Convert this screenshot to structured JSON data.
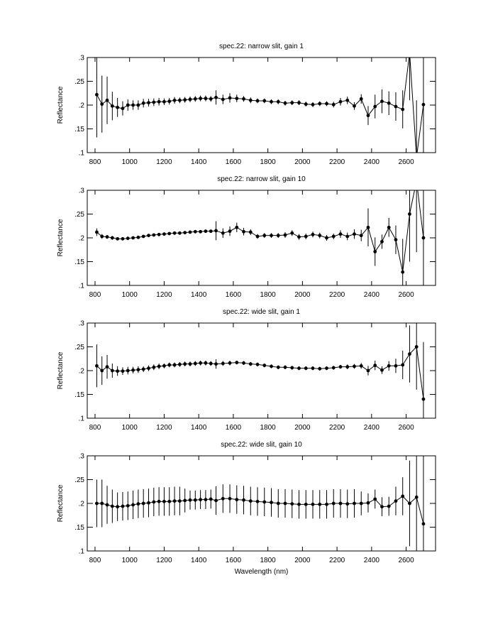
{
  "chart_data": [
    {
      "type": "line",
      "title": "spec.22: narrow slit, gain 1",
      "ylabel": "Reflectance",
      "x": [
        810,
        840,
        870,
        900,
        930,
        960,
        990,
        1020,
        1050,
        1080,
        1110,
        1140,
        1170,
        1200,
        1230,
        1260,
        1290,
        1320,
        1350,
        1380,
        1410,
        1440,
        1470,
        1500,
        1540,
        1580,
        1620,
        1660,
        1700,
        1740,
        1780,
        1820,
        1860,
        1900,
        1940,
        1980,
        2020,
        2060,
        2100,
        2140,
        2180,
        2220,
        2260,
        2300,
        2340,
        2380,
        2420,
        2460,
        2500,
        2540,
        2580,
        2620,
        2660,
        2700
      ],
      "values": [
        0.222,
        0.202,
        0.21,
        0.198,
        0.195,
        0.193,
        0.2,
        0.2,
        0.2,
        0.204,
        0.205,
        0.206,
        0.207,
        0.207,
        0.208,
        0.21,
        0.21,
        0.211,
        0.212,
        0.213,
        0.214,
        0.214,
        0.213,
        0.216,
        0.212,
        0.215,
        0.214,
        0.213,
        0.21,
        0.209,
        0.209,
        0.207,
        0.207,
        0.204,
        0.205,
        0.205,
        0.202,
        0.201,
        0.203,
        0.203,
        0.201,
        0.207,
        0.21,
        0.198,
        0.213,
        0.178,
        0.197,
        0.208,
        0.204,
        0.197,
        0.191,
        0.31,
        0.09,
        0.201
      ],
      "errors": [
        0.09,
        0.06,
        0.05,
        0.03,
        0.02,
        0.015,
        0.012,
        0.01,
        0.01,
        0.009,
        0.008,
        0.008,
        0.008,
        0.007,
        0.007,
        0.007,
        0.006,
        0.006,
        0.006,
        0.006,
        0.006,
        0.006,
        0.006,
        0.015,
        0.01,
        0.01,
        0.008,
        0.006,
        0.006,
        0.005,
        0.005,
        0.005,
        0.005,
        0.005,
        0.005,
        0.005,
        0.005,
        0.005,
        0.005,
        0.005,
        0.006,
        0.008,
        0.008,
        0.008,
        0.01,
        0.02,
        0.025,
        0.025,
        0.025,
        0.03,
        0.04,
        0.1,
        0.12,
        0.15
      ],
      "xlim": [
        755,
        2770
      ],
      "ylim": [
        0.1,
        0.3
      ],
      "xticks": [
        800,
        1000,
        1200,
        1400,
        1600,
        1800,
        2000,
        2200,
        2400,
        2600
      ],
      "yticks": [
        {
          "value": 0.1,
          "label": ".1"
        },
        {
          "value": 0.15,
          "label": ".15"
        },
        {
          "value": 0.2,
          "label": ".2"
        },
        {
          "value": 0.25,
          "label": ".25"
        },
        {
          "value": 0.3,
          "label": ".3"
        }
      ]
    },
    {
      "type": "line",
      "title": "spec.22: narrow slit, gain 10",
      "ylabel": "Reflectance",
      "x": [
        810,
        840,
        870,
        900,
        930,
        960,
        990,
        1020,
        1050,
        1080,
        1110,
        1140,
        1170,
        1200,
        1230,
        1260,
        1290,
        1320,
        1350,
        1380,
        1410,
        1440,
        1470,
        1500,
        1540,
        1580,
        1620,
        1660,
        1700,
        1740,
        1780,
        1820,
        1860,
        1900,
        1940,
        1980,
        2020,
        2060,
        2100,
        2140,
        2180,
        2220,
        2260,
        2300,
        2340,
        2380,
        2420,
        2460,
        2500,
        2540,
        2580,
        2620,
        2660,
        2700
      ],
      "values": [
        0.212,
        0.203,
        0.202,
        0.2,
        0.198,
        0.198,
        0.199,
        0.2,
        0.201,
        0.203,
        0.205,
        0.206,
        0.207,
        0.208,
        0.209,
        0.21,
        0.21,
        0.211,
        0.212,
        0.213,
        0.213,
        0.214,
        0.214,
        0.215,
        0.21,
        0.214,
        0.222,
        0.213,
        0.212,
        0.203,
        0.205,
        0.205,
        0.205,
        0.206,
        0.21,
        0.202,
        0.203,
        0.207,
        0.205,
        0.2,
        0.203,
        0.208,
        0.203,
        0.208,
        0.205,
        0.222,
        0.171,
        0.192,
        0.222,
        0.196,
        0.128,
        0.25,
        0.32,
        0.2
      ],
      "errors": [
        0.008,
        0.005,
        0.004,
        0.004,
        0.003,
        0.003,
        0.003,
        0.003,
        0.003,
        0.003,
        0.003,
        0.003,
        0.003,
        0.003,
        0.003,
        0.003,
        0.003,
        0.003,
        0.003,
        0.003,
        0.003,
        0.003,
        0.003,
        0.02,
        0.01,
        0.01,
        0.01,
        0.008,
        0.006,
        0.005,
        0.005,
        0.005,
        0.005,
        0.006,
        0.006,
        0.006,
        0.006,
        0.006,
        0.006,
        0.006,
        0.006,
        0.008,
        0.008,
        0.01,
        0.012,
        0.04,
        0.03,
        0.015,
        0.02,
        0.03,
        0.07,
        0.1,
        0.15,
        0.15
      ],
      "xlim": [
        755,
        2770
      ],
      "ylim": [
        0.1,
        0.3
      ],
      "xticks": [
        800,
        1000,
        1200,
        1400,
        1600,
        1800,
        2000,
        2200,
        2400,
        2600
      ],
      "yticks": [
        {
          "value": 0.1,
          "label": ".1"
        },
        {
          "value": 0.15,
          "label": ".15"
        },
        {
          "value": 0.2,
          "label": ".2"
        },
        {
          "value": 0.25,
          "label": ".25"
        },
        {
          "value": 0.3,
          "label": ".3"
        }
      ]
    },
    {
      "type": "line",
      "title": "spec.22: wide slit, gain 1",
      "ylabel": "Reflectance",
      "x": [
        810,
        840,
        870,
        900,
        930,
        960,
        990,
        1020,
        1050,
        1080,
        1110,
        1140,
        1170,
        1200,
        1230,
        1260,
        1290,
        1320,
        1350,
        1380,
        1410,
        1440,
        1470,
        1500,
        1540,
        1580,
        1620,
        1660,
        1700,
        1740,
        1780,
        1820,
        1860,
        1900,
        1940,
        1980,
        2020,
        2060,
        2100,
        2140,
        2180,
        2220,
        2260,
        2300,
        2340,
        2380,
        2420,
        2460,
        2500,
        2540,
        2580,
        2620,
        2660,
        2700
      ],
      "values": [
        0.21,
        0.2,
        0.208,
        0.2,
        0.199,
        0.199,
        0.2,
        0.201,
        0.202,
        0.203,
        0.205,
        0.207,
        0.209,
        0.21,
        0.212,
        0.212,
        0.213,
        0.214,
        0.214,
        0.215,
        0.216,
        0.216,
        0.215,
        0.214,
        0.215,
        0.216,
        0.217,
        0.216,
        0.214,
        0.213,
        0.211,
        0.209,
        0.207,
        0.207,
        0.206,
        0.205,
        0.205,
        0.205,
        0.204,
        0.205,
        0.206,
        0.208,
        0.208,
        0.209,
        0.21,
        0.2,
        0.211,
        0.201,
        0.21,
        0.21,
        0.212,
        0.235,
        0.25,
        0.14
      ],
      "errors": [
        0.045,
        0.03,
        0.025,
        0.015,
        0.01,
        0.008,
        0.008,
        0.007,
        0.007,
        0.006,
        0.006,
        0.006,
        0.006,
        0.005,
        0.005,
        0.005,
        0.005,
        0.005,
        0.005,
        0.005,
        0.005,
        0.005,
        0.005,
        0.01,
        0.005,
        0.005,
        0.004,
        0.004,
        0.004,
        0.004,
        0.004,
        0.004,
        0.004,
        0.004,
        0.004,
        0.004,
        0.004,
        0.004,
        0.004,
        0.004,
        0.004,
        0.004,
        0.005,
        0.005,
        0.006,
        0.01,
        0.01,
        0.008,
        0.01,
        0.015,
        0.03,
        0.06,
        0.09,
        0.12
      ],
      "xlim": [
        755,
        2770
      ],
      "ylim": [
        0.1,
        0.3
      ],
      "xticks": [
        800,
        1000,
        1200,
        1400,
        1600,
        1800,
        2000,
        2200,
        2400,
        2600
      ],
      "yticks": [
        {
          "value": 0.1,
          "label": ".1"
        },
        {
          "value": 0.15,
          "label": ".15"
        },
        {
          "value": 0.2,
          "label": ".2"
        },
        {
          "value": 0.25,
          "label": ".25"
        },
        {
          "value": 0.3,
          "label": ".3"
        }
      ]
    },
    {
      "type": "line",
      "title": "spec.22: wide slit, gain 10",
      "ylabel": "Reflectance",
      "xlabel": "Wavelength (nm)",
      "x": [
        810,
        840,
        870,
        900,
        930,
        960,
        990,
        1020,
        1050,
        1080,
        1110,
        1140,
        1170,
        1200,
        1230,
        1260,
        1290,
        1320,
        1350,
        1380,
        1410,
        1440,
        1470,
        1500,
        1540,
        1580,
        1620,
        1660,
        1700,
        1740,
        1780,
        1820,
        1860,
        1900,
        1940,
        1980,
        2020,
        2060,
        2100,
        2140,
        2180,
        2220,
        2260,
        2300,
        2340,
        2380,
        2420,
        2460,
        2500,
        2540,
        2580,
        2620,
        2660,
        2700
      ],
      "values": [
        0.2,
        0.2,
        0.197,
        0.194,
        0.193,
        0.194,
        0.195,
        0.197,
        0.199,
        0.2,
        0.201,
        0.203,
        0.204,
        0.204,
        0.204,
        0.205,
        0.205,
        0.206,
        0.207,
        0.207,
        0.208,
        0.208,
        0.209,
        0.206,
        0.21,
        0.21,
        0.208,
        0.207,
        0.205,
        0.204,
        0.203,
        0.202,
        0.2,
        0.2,
        0.199,
        0.198,
        0.198,
        0.198,
        0.198,
        0.198,
        0.2,
        0.2,
        0.199,
        0.2,
        0.2,
        0.201,
        0.209,
        0.193,
        0.194,
        0.205,
        0.215,
        0.2,
        0.213,
        0.157
      ],
      "errors": [
        0.05,
        0.05,
        0.04,
        0.035,
        0.03,
        0.03,
        0.03,
        0.03,
        0.03,
        0.03,
        0.03,
        0.03,
        0.03,
        0.03,
        0.03,
        0.03,
        0.03,
        0.025,
        0.02,
        0.02,
        0.02,
        0.02,
        0.02,
        0.03,
        0.03,
        0.03,
        0.03,
        0.03,
        0.03,
        0.03,
        0.03,
        0.03,
        0.03,
        0.03,
        0.03,
        0.03,
        0.03,
        0.03,
        0.03,
        0.03,
        0.03,
        0.03,
        0.03,
        0.03,
        0.025,
        0.02,
        0.02,
        0.02,
        0.02,
        0.03,
        0.04,
        0.09,
        0.12,
        0.15
      ],
      "xlim": [
        755,
        2770
      ],
      "ylim": [
        0.1,
        0.3
      ],
      "xticks": [
        800,
        1000,
        1200,
        1400,
        1600,
        1800,
        2000,
        2200,
        2400,
        2600
      ],
      "yticks": [
        {
          "value": 0.1,
          "label": ".1"
        },
        {
          "value": 0.15,
          "label": ".15"
        },
        {
          "value": 0.2,
          "label": ".2"
        },
        {
          "value": 0.25,
          "label": ".25"
        },
        {
          "value": 0.3,
          "label": ".3"
        }
      ]
    }
  ]
}
